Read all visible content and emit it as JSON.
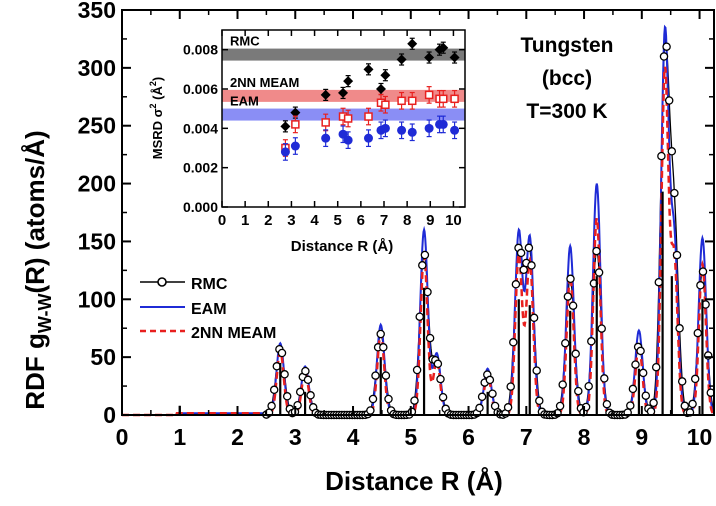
{
  "chart_data": [
    {
      "type": "line",
      "role": "main",
      "xlabel": "Distance R (Å)",
      "ylabel": "RDF g",
      "ylabel_sub": "W-W",
      "ylabel_tail": "(R) (atoms/Å)",
      "xlim": [
        0,
        10.25
      ],
      "ylim": [
        0,
        350
      ],
      "xticks": [
        "0",
        "1",
        "2",
        "3",
        "4",
        "5",
        "6",
        "7",
        "8",
        "9",
        "10"
      ],
      "yticks": [
        "0",
        "50",
        "100",
        "150",
        "200",
        "250",
        "300",
        "350"
      ],
      "annotation": [
        "Tungsten",
        "(bcc)",
        "T=300 K"
      ],
      "legend_position": "center-left",
      "series": [
        {
          "name": "RMC",
          "color": "#000000",
          "marker": "open-circle",
          "peaks": [
            [
              2.74,
              58
            ],
            [
              3.17,
              38
            ],
            [
              4.48,
              70
            ],
            [
              5.23,
              140
            ],
            [
              5.45,
              45
            ],
            [
              6.33,
              35
            ],
            [
              6.87,
              140
            ],
            [
              7.06,
              138
            ],
            [
              7.76,
              118
            ],
            [
              8.22,
              142
            ],
            [
              8.95,
              60
            ],
            [
              9.4,
              305
            ],
            [
              9.56,
              165
            ],
            [
              10.05,
              125
            ]
          ]
        },
        {
          "name": "EAM",
          "color": "#1f2bd6",
          "peaks": [
            [
              2.74,
              62
            ],
            [
              3.17,
              42
            ],
            [
              4.48,
              78
            ],
            [
              5.23,
              160
            ],
            [
              5.45,
              53
            ],
            [
              6.33,
              40
            ],
            [
              6.87,
              158
            ],
            [
              7.06,
              153
            ],
            [
              7.76,
              146
            ],
            [
              8.22,
              200
            ],
            [
              8.95,
              73
            ],
            [
              9.4,
              328
            ],
            [
              9.56,
              150
            ],
            [
              10.05,
              153
            ]
          ]
        },
        {
          "name": "2NN MEAM",
          "color": "#e8201f",
          "peaks": [
            [
              2.74,
              55
            ],
            [
              3.17,
              37
            ],
            [
              4.48,
              70
            ],
            [
              5.23,
              138
            ],
            [
              5.45,
              47
            ],
            [
              6.33,
              35
            ],
            [
              6.87,
              138
            ],
            [
              7.06,
              133
            ],
            [
              7.76,
              120
            ],
            [
              8.22,
              170
            ],
            [
              8.95,
              60
            ],
            [
              9.4,
              297
            ],
            [
              9.56,
              135
            ],
            [
              10.05,
              130
            ]
          ]
        }
      ]
    },
    {
      "type": "scatter",
      "role": "inset",
      "xlabel": "Distance R (Å)",
      "ylabel": "MSRD σ",
      "ylabel_sup": "2",
      "ylabel_tail": " (Å",
      "ylabel_sup2": "2",
      "ylabel_end": ")",
      "xlim": [
        0,
        10.5
      ],
      "ylim": [
        0,
        0.009
      ],
      "xticks": [
        "0",
        "1",
        "2",
        "3",
        "4",
        "5",
        "6",
        "7",
        "8",
        "9",
        "10"
      ],
      "yticks": [
        "0.000",
        "0.002",
        "0.004",
        "0.006",
        "0.008"
      ],
      "bands": [
        {
          "name": "RMC",
          "color": "#7a7a7a",
          "text_color": "#000000",
          "y": 0.00775
        },
        {
          "name": "2NN MEAM",
          "color": "#f08a8a",
          "text_color": "#e8201f",
          "y": 0.00565
        },
        {
          "name": "EAM",
          "color": "#8a8ef5",
          "text_color": "#1f2bd6",
          "y": 0.0047
        }
      ],
      "series": [
        {
          "name": "RMC",
          "color": "#000000",
          "marker": "diamond",
          "points": [
            [
              2.74,
              0.0041
            ],
            [
              3.17,
              0.0048
            ],
            [
              4.48,
              0.0057
            ],
            [
              5.23,
              0.0058
            ],
            [
              5.45,
              0.0064
            ],
            [
              6.33,
              0.007
            ],
            [
              6.87,
              0.006
            ],
            [
              7.06,
              0.0067
            ],
            [
              7.76,
              0.0075
            ],
            [
              8.22,
              0.0083
            ],
            [
              8.95,
              0.0076
            ],
            [
              9.4,
              0.008
            ],
            [
              9.56,
              0.0081
            ],
            [
              10.05,
              0.0076
            ]
          ]
        },
        {
          "name": "2NN MEAM",
          "color": "#e8201f",
          "marker": "open-square",
          "points": [
            [
              2.74,
              0.003
            ],
            [
              3.17,
              0.0042
            ],
            [
              4.48,
              0.0043
            ],
            [
              5.23,
              0.0046
            ],
            [
              5.45,
              0.0045
            ],
            [
              6.33,
              0.0046
            ],
            [
              6.87,
              0.0053
            ],
            [
              7.06,
              0.0052
            ],
            [
              7.76,
              0.0054
            ],
            [
              8.22,
              0.0054
            ],
            [
              8.95,
              0.0057
            ],
            [
              9.4,
              0.0055
            ],
            [
              9.56,
              0.0055
            ],
            [
              10.05,
              0.0055
            ]
          ]
        },
        {
          "name": "EAM",
          "color": "#1f2bd6",
          "marker": "filled-circle",
          "points": [
            [
              2.74,
              0.0028
            ],
            [
              3.17,
              0.0031
            ],
            [
              4.48,
              0.0035
            ],
            [
              5.23,
              0.0037
            ],
            [
              5.45,
              0.0034
            ],
            [
              6.33,
              0.0035
            ],
            [
              6.87,
              0.0039
            ],
            [
              7.06,
              0.004
            ],
            [
              7.76,
              0.0039
            ],
            [
              8.22,
              0.0038
            ],
            [
              8.95,
              0.004
            ],
            [
              9.4,
              0.0042
            ],
            [
              9.56,
              0.0042
            ],
            [
              10.05,
              0.0039
            ]
          ]
        }
      ]
    }
  ]
}
